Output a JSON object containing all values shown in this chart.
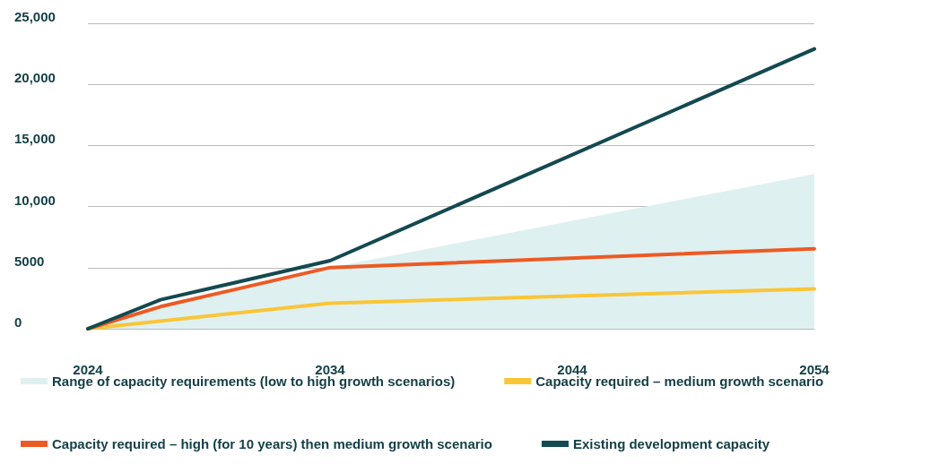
{
  "chart_data": {
    "type": "line",
    "x": [
      2024,
      2027,
      2034,
      2054
    ],
    "series": [
      {
        "name": "Range of capacity requirements (low to high growth scenarios)",
        "type": "area",
        "color": "#dff0f0",
        "values": [
          0,
          1810,
          5000,
          12670
        ]
      },
      {
        "name": "Capacity required – medium growth scenario",
        "color": "#f9c637",
        "x": [
          2024,
          2034,
          2054
        ],
        "values": [
          0,
          2090,
          3270
        ]
      },
      {
        "name": "Capacity required – high (for 10 years) then medium growth scenario",
        "color": "#ec5a24",
        "values": [
          0,
          1810,
          5010,
          6550
        ]
      },
      {
        "name": "Existing development capacity",
        "color": "#124a50",
        "values": [
          0,
          2370,
          5570,
          22900
        ]
      }
    ],
    "xlim": [
      2024,
      2054
    ],
    "xticks": [
      2024,
      2034,
      2044,
      2054
    ],
    "ylim": [
      0,
      25000
    ],
    "yticks": [
      0,
      5000,
      {
        "value": 10000,
        "label": "10,000"
      },
      {
        "value": 15000,
        "label": "15,000"
      },
      {
        "value": 20000,
        "label": "20,000"
      },
      {
        "value": 25000,
        "label": "25,000"
      }
    ],
    "grid": "y",
    "legend": "bottom",
    "marker": "none",
    "line_style": "solid"
  }
}
